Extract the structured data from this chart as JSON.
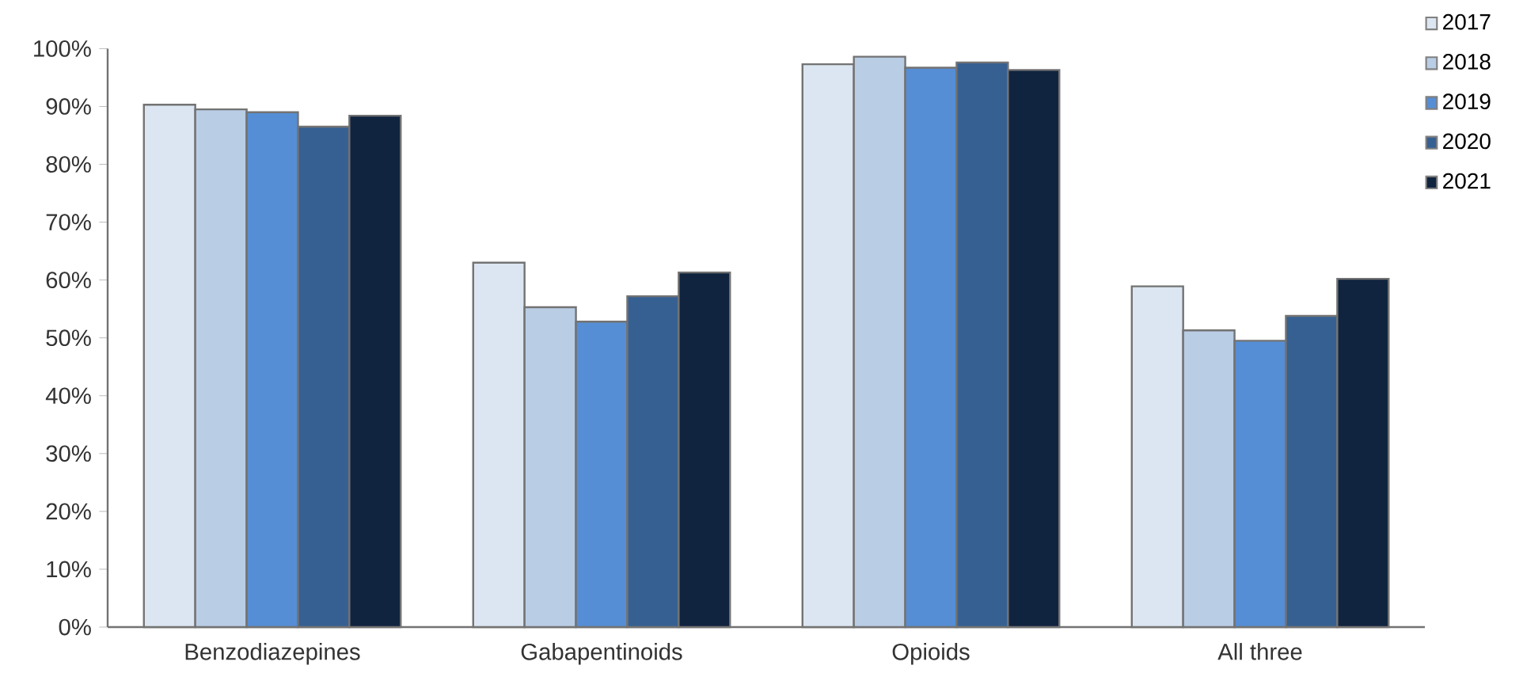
{
  "chart_data": {
    "type": "bar",
    "categories": [
      "Benzodiazepines",
      "Gabapentinoids",
      "Opioids",
      "All three"
    ],
    "series": [
      {
        "name": "2017",
        "color": "#dce6f2",
        "values": [
          90.3,
          63.0,
          97.3,
          58.9
        ]
      },
      {
        "name": "2018",
        "color": "#b9cde5",
        "values": [
          89.5,
          55.3,
          98.6,
          51.3
        ]
      },
      {
        "name": "2019",
        "color": "#558ed5",
        "values": [
          89.0,
          52.8,
          96.7,
          49.5
        ]
      },
      {
        "name": "2020",
        "color": "#376092",
        "values": [
          86.5,
          57.2,
          97.6,
          53.8
        ]
      },
      {
        "name": "2021",
        "color": "#10243f",
        "values": [
          88.4,
          61.3,
          96.3,
          60.2
        ]
      }
    ],
    "ylim": [
      0,
      100
    ],
    "yticks": [
      {
        "value": 0,
        "label": "0%"
      },
      {
        "value": 10,
        "label": "10%"
      },
      {
        "value": 20,
        "label": "20%"
      },
      {
        "value": 30,
        "label": "30%"
      },
      {
        "value": 40,
        "label": "40%"
      },
      {
        "value": 50,
        "label": "50%"
      },
      {
        "value": 60,
        "label": "60%"
      },
      {
        "value": 70,
        "label": "70%"
      },
      {
        "value": 80,
        "label": "80%"
      },
      {
        "value": 90,
        "label": "90%"
      },
      {
        "value": 100,
        "label": "100%"
      }
    ],
    "grid": false,
    "legend": "top right"
  }
}
